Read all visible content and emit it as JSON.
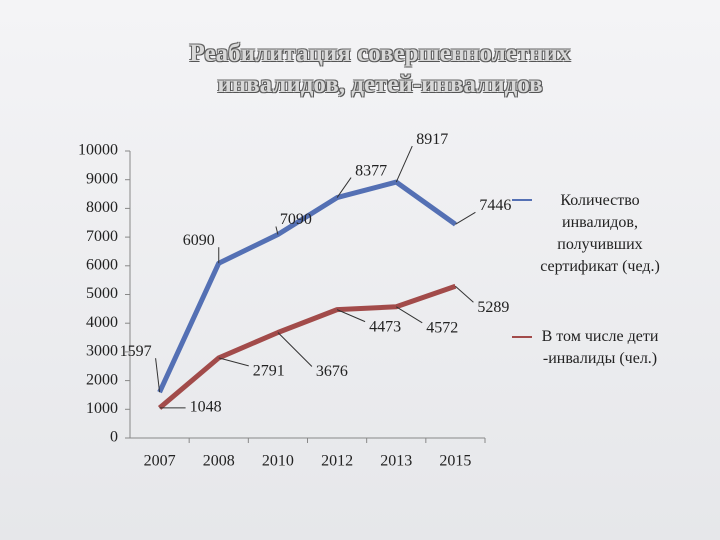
{
  "chart_data": {
    "type": "line",
    "title": "Реабилитация совершеннолетних инвалидов, детей-инвалидов",
    "categories": [
      "2007",
      "2008",
      "2010",
      "2012",
      "2013",
      "2015"
    ],
    "series": [
      {
        "name": "Количество инвалидов, получивших сертификат (чед.)",
        "color": "#5470b4",
        "values": [
          1597,
          6090,
          7090,
          8377,
          8917,
          7446
        ]
      },
      {
        "name": "В том числе дети -инвалиды (чел.)",
        "color": "#a24b4a",
        "values": [
          1048,
          2791,
          3676,
          4473,
          4572,
          5289
        ]
      }
    ],
    "ylim": [
      0,
      10000
    ],
    "yticks": [
      0,
      1000,
      2000,
      3000,
      4000,
      5000,
      6000,
      7000,
      8000,
      9000,
      10000
    ],
    "grid": false,
    "legend": "right"
  }
}
